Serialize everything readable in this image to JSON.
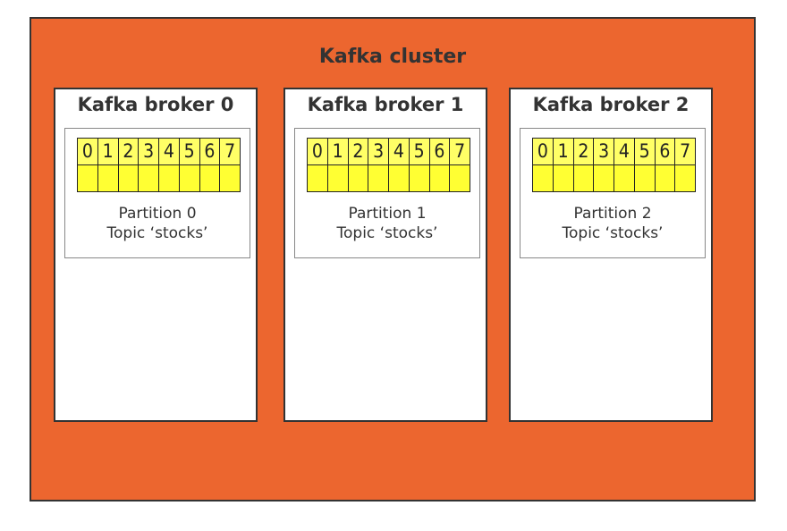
{
  "colors": {
    "cluster_fill": "#ec662f",
    "offset_cell_fill": "#ffff33",
    "border": "#333333"
  },
  "cluster": {
    "title": "Kafka cluster",
    "brokers": [
      {
        "title": "Kafka broker 0",
        "partition_label": "Partition 0",
        "topic_label": "Topic ‘stocks’",
        "offsets": [
          "0",
          "1",
          "2",
          "3",
          "4",
          "5",
          "6",
          "7"
        ]
      },
      {
        "title": "Kafka broker 1",
        "partition_label": "Partition 1",
        "topic_label": "Topic ‘stocks’",
        "offsets": [
          "0",
          "1",
          "2",
          "3",
          "4",
          "5",
          "6",
          "7"
        ]
      },
      {
        "title": "Kafka broker 2",
        "partition_label": "Partition 2",
        "topic_label": "Topic ‘stocks’",
        "offsets": [
          "0",
          "1",
          "2",
          "3",
          "4",
          "5",
          "6",
          "7"
        ]
      }
    ]
  }
}
